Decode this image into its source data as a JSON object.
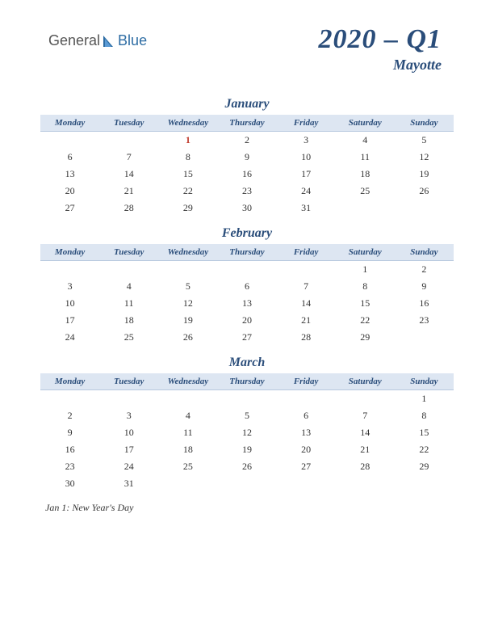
{
  "logo": {
    "text1": "General",
    "text2": "Blue",
    "color1": "#555555",
    "color2": "#2e6da4",
    "shape_color": "#2e6da4"
  },
  "header": {
    "title": "2020 – Q1",
    "subtitle": "Mayotte",
    "title_color": "#2a4d7a",
    "title_fontsize": 34,
    "subtitle_fontsize": 18
  },
  "day_headers": [
    "Monday",
    "Tuesday",
    "Wednesday",
    "Thursday",
    "Friday",
    "Saturday",
    "Sunday"
  ],
  "header_row_bg": "#dde6f2",
  "header_text_color": "#2a4d7a",
  "holiday_color": "#c0392b",
  "cell_text_color": "#333333",
  "background_color": "#ffffff",
  "months": [
    {
      "name": "January",
      "weeks": [
        [
          "",
          "",
          "1",
          "2",
          "3",
          "4",
          "5"
        ],
        [
          "6",
          "7",
          "8",
          "9",
          "10",
          "11",
          "12"
        ],
        [
          "13",
          "14",
          "15",
          "16",
          "17",
          "18",
          "19"
        ],
        [
          "20",
          "21",
          "22",
          "23",
          "24",
          "25",
          "26"
        ],
        [
          "27",
          "28",
          "29",
          "30",
          "31",
          "",
          ""
        ]
      ],
      "holidays": [
        [
          0,
          2
        ]
      ]
    },
    {
      "name": "February",
      "weeks": [
        [
          "",
          "",
          "",
          "",
          "",
          "1",
          "2"
        ],
        [
          "3",
          "4",
          "5",
          "6",
          "7",
          "8",
          "9"
        ],
        [
          "10",
          "11",
          "12",
          "13",
          "14",
          "15",
          "16"
        ],
        [
          "17",
          "18",
          "19",
          "20",
          "21",
          "22",
          "23"
        ],
        [
          "24",
          "25",
          "26",
          "27",
          "28",
          "29",
          ""
        ]
      ],
      "holidays": []
    },
    {
      "name": "March",
      "weeks": [
        [
          "",
          "",
          "",
          "",
          "",
          "",
          "1"
        ],
        [
          "2",
          "3",
          "4",
          "5",
          "6",
          "7",
          "8"
        ],
        [
          "9",
          "10",
          "11",
          "12",
          "13",
          "14",
          "15"
        ],
        [
          "16",
          "17",
          "18",
          "19",
          "20",
          "21",
          "22"
        ],
        [
          "23",
          "24",
          "25",
          "26",
          "27",
          "28",
          "29"
        ],
        [
          "30",
          "31",
          "",
          "",
          "",
          "",
          ""
        ]
      ],
      "holidays": []
    }
  ],
  "notes": "Jan 1: New Year's Day"
}
